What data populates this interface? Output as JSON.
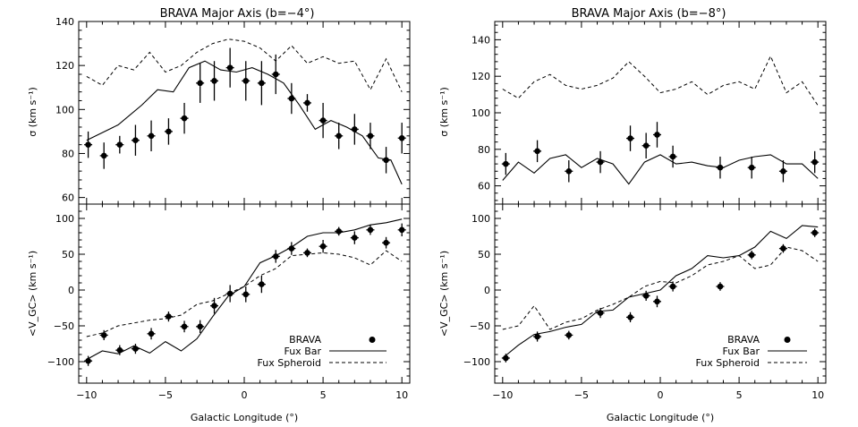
{
  "figure": {
    "left_title": "BRAVA Major Axis (b=−4°)",
    "right_title": "BRAVA Major Axis (b=−8°)",
    "xlabel": "Galactic Longitude (°)",
    "ylabel_sigma": "σ (km s⁻¹)",
    "ylabel_vgc": "<V_GC> (km s⁻¹)",
    "legend": {
      "brava": "BRAVA",
      "fux_bar": "Fux Bar",
      "fux_spheroid": "Fux Spheroid"
    }
  },
  "chart_data": [
    {
      "id": "b4_sigma",
      "type": "scatter",
      "title": "BRAVA Major Axis (b=−4°)",
      "ylabel": "σ (km s⁻¹)",
      "xlim": [
        -10.5,
        10.5
      ],
      "ylim": [
        57,
        140
      ],
      "yticks": [
        60,
        80,
        100,
        120,
        140
      ],
      "series": [
        {
          "name": "BRAVA",
          "style": "points",
          "points": [
            [
              -9.9,
              84,
              6
            ],
            [
              -8.9,
              79,
              6
            ],
            [
              -7.9,
              84,
              4
            ],
            [
              -6.9,
              86,
              7
            ],
            [
              -5.9,
              88,
              7
            ],
            [
              -4.8,
              90,
              6
            ],
            [
              -3.8,
              96,
              7
            ],
            [
              -2.8,
              112,
              9
            ],
            [
              -1.9,
              113,
              9
            ],
            [
              -0.9,
              119,
              9
            ],
            [
              0.1,
              113,
              9
            ],
            [
              1.1,
              112,
              10
            ],
            [
              2.0,
              116,
              9
            ],
            [
              3.0,
              105,
              7
            ],
            [
              4.0,
              103,
              4
            ],
            [
              5.0,
              95,
              8
            ],
            [
              6.0,
              88,
              6
            ],
            [
              7.0,
              91,
              7
            ],
            [
              8.0,
              88,
              6
            ],
            [
              9.0,
              77,
              6
            ],
            [
              10.0,
              87,
              7
            ]
          ]
        },
        {
          "name": "Fux Bar",
          "style": "solid",
          "points": [
            [
              -10,
              86
            ],
            [
              -8,
              93
            ],
            [
              -6.5,
              102
            ],
            [
              -5.5,
              109
            ],
            [
              -4.5,
              108
            ],
            [
              -3.5,
              119
            ],
            [
              -2.5,
              122
            ],
            [
              -1.5,
              118
            ],
            [
              -0.5,
              117
            ],
            [
              0.5,
              119
            ],
            [
              1.5,
              116
            ],
            [
              2.5,
              112
            ],
            [
              3.5,
              102
            ],
            [
              4.5,
              91
            ],
            [
              5.5,
              95
            ],
            [
              6.5,
              92
            ],
            [
              7.5,
              88
            ],
            [
              8.5,
              78
            ],
            [
              9.3,
              77
            ],
            [
              10,
              66
            ]
          ]
        },
        {
          "name": "Fux Spheroid",
          "style": "dashed",
          "points": [
            [
              -10,
              115
            ],
            [
              -9,
              111
            ],
            [
              -8,
              120
            ],
            [
              -7,
              118
            ],
            [
              -6,
              126
            ],
            [
              -5,
              117
            ],
            [
              -4,
              120
            ],
            [
              -3,
              126
            ],
            [
              -2,
              130
            ],
            [
              -1,
              132
            ],
            [
              0,
              131
            ],
            [
              1,
              128
            ],
            [
              2,
              122
            ],
            [
              3,
              129
            ],
            [
              4,
              121
            ],
            [
              5,
              124
            ],
            [
              6,
              121
            ],
            [
              7,
              122
            ],
            [
              8,
              109
            ],
            [
              9,
              123
            ],
            [
              10,
              108
            ]
          ]
        }
      ]
    },
    {
      "id": "b4_vgc",
      "type": "scatter",
      "xlabel": "Galactic Longitude (°)",
      "ylabel": "<V_GC> (km s⁻¹)",
      "xlim": [
        -10.5,
        10.5
      ],
      "ylim": [
        -130,
        120
      ],
      "yticks": [
        -100,
        -50,
        0,
        50,
        100
      ],
      "xticks": [
        -10,
        -5,
        0,
        5,
        10
      ],
      "legend": "bottom-right",
      "series": [
        {
          "name": "BRAVA",
          "style": "points",
          "points": [
            [
              -9.9,
              -99,
              7
            ],
            [
              -8.9,
              -63,
              7
            ],
            [
              -7.9,
              -84,
              7
            ],
            [
              -6.9,
              -82,
              7
            ],
            [
              -5.9,
              -61,
              8
            ],
            [
              -4.8,
              -37,
              7
            ],
            [
              -3.8,
              -51,
              8
            ],
            [
              -2.8,
              -51,
              9
            ],
            [
              -1.9,
              -22,
              11
            ],
            [
              -0.9,
              -5,
              12
            ],
            [
              0.1,
              -6,
              11
            ],
            [
              1.1,
              8,
              12
            ],
            [
              2.0,
              47,
              9
            ],
            [
              3.0,
              58,
              9
            ],
            [
              4.0,
              52,
              6
            ],
            [
              5.0,
              61,
              9
            ],
            [
              6.0,
              82,
              6
            ],
            [
              7.0,
              73,
              9
            ],
            [
              8.0,
              84,
              7
            ],
            [
              9.0,
              66,
              8
            ],
            [
              10.0,
              84,
              9
            ]
          ]
        },
        {
          "name": "Fux Bar",
          "style": "solid",
          "points": [
            [
              -10,
              -97
            ],
            [
              -9,
              -85
            ],
            [
              -8,
              -89
            ],
            [
              -7,
              -78
            ],
            [
              -6,
              -88
            ],
            [
              -5,
              -72
            ],
            [
              -4,
              -85
            ],
            [
              -3,
              -68
            ],
            [
              -2,
              -37
            ],
            [
              -1,
              -8
            ],
            [
              0,
              5
            ],
            [
              1,
              38
            ],
            [
              2,
              48
            ],
            [
              3,
              60
            ],
            [
              4,
              75
            ],
            [
              5,
              80
            ],
            [
              6,
              80
            ],
            [
              7,
              84
            ],
            [
              8,
              91
            ],
            [
              9,
              94
            ],
            [
              10,
              99
            ]
          ]
        },
        {
          "name": "Fux Spheroid",
          "style": "dashed",
          "points": [
            [
              -10,
              -65
            ],
            [
              -9,
              -60
            ],
            [
              -8,
              -50
            ],
            [
              -7,
              -46
            ],
            [
              -6,
              -42
            ],
            [
              -5,
              -40
            ],
            [
              -4,
              -35
            ],
            [
              -3,
              -20
            ],
            [
              -2,
              -15
            ],
            [
              -1,
              -5
            ],
            [
              0,
              5
            ],
            [
              1,
              20
            ],
            [
              2,
              30
            ],
            [
              3,
              48
            ],
            [
              4,
              50
            ],
            [
              5,
              52
            ],
            [
              6,
              50
            ],
            [
              7,
              45
            ],
            [
              8,
              35
            ],
            [
              9,
              55
            ],
            [
              10,
              40
            ]
          ]
        }
      ]
    },
    {
      "id": "b8_sigma",
      "type": "scatter",
      "title": "BRAVA Major Axis (b=−8°)",
      "ylabel": "σ (km s⁻¹)",
      "xlim": [
        -10.5,
        10.5
      ],
      "ylim": [
        50,
        150
      ],
      "yticks": [
        60,
        80,
        100,
        120,
        140
      ],
      "series": [
        {
          "name": "BRAVA",
          "style": "points",
          "points": [
            [
              -9.8,
              72,
              6
            ],
            [
              -7.8,
              79,
              6
            ],
            [
              -5.8,
              68,
              6
            ],
            [
              -3.8,
              73,
              6
            ],
            [
              -1.9,
              86,
              7
            ],
            [
              -0.9,
              82,
              7
            ],
            [
              -0.2,
              88,
              7
            ],
            [
              0.8,
              76,
              6
            ],
            [
              3.8,
              70,
              6
            ],
            [
              5.8,
              70,
              6
            ],
            [
              7.8,
              68,
              6
            ],
            [
              9.8,
              73,
              6
            ]
          ]
        },
        {
          "name": "Fux Bar",
          "style": "solid",
          "points": [
            [
              -10,
              63
            ],
            [
              -9,
              73
            ],
            [
              -8,
              67
            ],
            [
              -7,
              75
            ],
            [
              -6,
              77
            ],
            [
              -5,
              70
            ],
            [
              -4,
              75
            ],
            [
              -3,
              72
            ],
            [
              -2,
              61
            ],
            [
              -1,
              73
            ],
            [
              0,
              77
            ],
            [
              1,
              72
            ],
            [
              2,
              73
            ],
            [
              3,
              71
            ],
            [
              4,
              70
            ],
            [
              5,
              74
            ],
            [
              6,
              76
            ],
            [
              7,
              77
            ],
            [
              8,
              72
            ],
            [
              9,
              72
            ],
            [
              10,
              64
            ]
          ]
        },
        {
          "name": "Fux Spheroid",
          "style": "dashed",
          "points": [
            [
              -10,
              113
            ],
            [
              -9,
              108
            ],
            [
              -8,
              117
            ],
            [
              -7,
              121
            ],
            [
              -6,
              115
            ],
            [
              -5,
              113
            ],
            [
              -4,
              115
            ],
            [
              -3,
              119
            ],
            [
              -2,
              128
            ],
            [
              -1,
              120
            ],
            [
              0,
              111
            ],
            [
              1,
              113
            ],
            [
              2,
              117
            ],
            [
              3,
              110
            ],
            [
              4,
              115
            ],
            [
              5,
              117
            ],
            [
              6,
              113
            ],
            [
              7,
              131
            ],
            [
              8,
              111
            ],
            [
              9,
              117
            ],
            [
              10,
              104
            ]
          ]
        }
      ]
    },
    {
      "id": "b8_vgc",
      "type": "scatter",
      "xlabel": "Galactic Longitude (°)",
      "ylabel": "<V_GC> (km s⁻¹)",
      "xlim": [
        -10.5,
        10.5
      ],
      "ylim": [
        -130,
        120
      ],
      "yticks": [
        -100,
        -50,
        0,
        50,
        100
      ],
      "xticks": [
        -10,
        -5,
        0,
        5,
        10
      ],
      "legend": "bottom-right",
      "series": [
        {
          "name": "BRAVA",
          "style": "points",
          "points": [
            [
              -9.8,
              -95,
              6
            ],
            [
              -7.8,
              -65,
              7
            ],
            [
              -5.8,
              -63,
              6
            ],
            [
              -3.8,
              -32,
              7
            ],
            [
              -1.9,
              -38,
              7
            ],
            [
              -0.9,
              -8,
              7
            ],
            [
              -0.2,
              -16,
              8
            ],
            [
              0.8,
              5,
              7
            ],
            [
              3.8,
              5,
              6
            ],
            [
              5.8,
              49,
              6
            ],
            [
              7.8,
              58,
              6
            ],
            [
              9.8,
              80,
              6
            ]
          ]
        },
        {
          "name": "Fux Bar",
          "style": "solid",
          "points": [
            [
              -10,
              -95
            ],
            [
              -9,
              -77
            ],
            [
              -8,
              -62
            ],
            [
              -7,
              -58
            ],
            [
              -6,
              -52
            ],
            [
              -5,
              -48
            ],
            [
              -4,
              -30
            ],
            [
              -3,
              -28
            ],
            [
              -2,
              -10
            ],
            [
              -1,
              -5
            ],
            [
              0,
              0
            ],
            [
              1,
              20
            ],
            [
              2,
              30
            ],
            [
              3,
              48
            ],
            [
              4,
              45
            ],
            [
              5,
              48
            ],
            [
              6,
              60
            ],
            [
              7,
              82
            ],
            [
              8,
              72
            ],
            [
              9,
              90
            ],
            [
              10,
              88
            ]
          ]
        },
        {
          "name": "Fux Spheroid",
          "style": "dashed",
          "points": [
            [
              -10,
              -55
            ],
            [
              -9,
              -50
            ],
            [
              -8,
              -22
            ],
            [
              -7,
              -55
            ],
            [
              -6,
              -45
            ],
            [
              -5,
              -40
            ],
            [
              -4,
              -28
            ],
            [
              -3,
              -20
            ],
            [
              -2,
              -10
            ],
            [
              -1,
              5
            ],
            [
              0,
              12
            ],
            [
              1,
              10
            ],
            [
              2,
              20
            ],
            [
              3,
              35
            ],
            [
              4,
              40
            ],
            [
              5,
              48
            ],
            [
              6,
              30
            ],
            [
              7,
              35
            ],
            [
              8,
              60
            ],
            [
              9,
              55
            ],
            [
              10,
              40
            ]
          ]
        }
      ]
    }
  ]
}
